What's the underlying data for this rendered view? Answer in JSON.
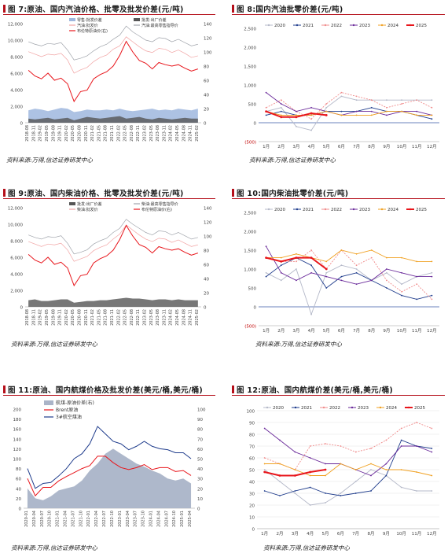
{
  "panels": [
    {
      "key": "p7",
      "title_prefix": "图 7:",
      "title": "原油、国内汽油价格、批零及批发价差(元/吨)",
      "source": "资料来源:万得,信达证券研发中心"
    },
    {
      "key": "p8",
      "title_prefix": "图 8:",
      "title": "国内汽油批零价差(元/吨)",
      "source": "资料来源:万得,信达证券研发中心"
    },
    {
      "key": "p9",
      "title_prefix": "图 9:",
      "title": "原油、国内柴油价格、批零及批发价差(元/吨)",
      "source": "资料来源:万得,信达证券研发中心"
    },
    {
      "key": "p10",
      "title_prefix": "图 10:",
      "title": "国内柴油批零价差(元/吨)",
      "source": "资料来源:万得,信达证券研发中心"
    },
    {
      "key": "p11",
      "title_prefix": "图 11:",
      "title": "原油、国内航煤价格及批发价差(美元/桶,美元/桶)",
      "source": "资料来源:万得,信达证券研发中心"
    },
    {
      "key": "p12",
      "title_prefix": "图 12:",
      "title": "原油、国内航煤价差(美元/桶,美元/桶)",
      "source": "资料来源:万得,信达证券研发中心"
    }
  ],
  "colors": {
    "accent": "#b50f1a",
    "crude": "#e8151b",
    "area_light": "#9fb7de",
    "area_dark": "#555555",
    "pink": "#f1a3a3",
    "grey_line": "#a0a4ab",
    "y2020": "#b4b8c8",
    "y2021": "#1f3c8c",
    "y2022": "#f08c8c",
    "y2023": "#6a2a9a",
    "y2024": "#f0a020",
    "y2025": "#e8151b"
  },
  "chart_data": [
    {
      "key": "p7",
      "type": "line",
      "legend": [
        "零售-批发价差",
        "批发:出厂价差",
        "汽油:批发价",
        "汽油:最高零售指导价",
        "布伦特原油价(右)"
      ],
      "x_ticks": [
        "2018-08",
        "2018-11",
        "2019-02",
        "2019-05",
        "2019-08",
        "2019-11",
        "2020-02",
        "2020-05",
        "2020-08",
        "2020-11",
        "2021-02",
        "2021-05",
        "2021-08",
        "2021-11",
        "2022-02",
        "2022-05",
        "2022-08",
        "2022-11",
        "2023-02",
        "2023-05",
        "2023-08",
        "2023-11",
        "2024-02",
        "2024-05",
        "2024-08",
        "2024-11",
        "2025-02"
      ],
      "ylim": [
        0,
        12000
      ],
      "y_ticks": [
        "0",
        "2,000",
        "4,000",
        "6,000",
        "8,000",
        "10,000",
        "12,000"
      ],
      "y2lim": [
        0,
        140
      ],
      "y2_ticks": [
        "0",
        "20",
        "40",
        "60",
        "80",
        "100",
        "120",
        "140"
      ],
      "series": [
        {
          "name": "零售-批发价差",
          "values": [
            1500,
            1700,
            1600,
            1400,
            1600,
            1800,
            1700,
            1300,
            1400,
            1600,
            1500,
            1500,
            1600,
            1500,
            1700,
            1500,
            1400,
            1500,
            1600,
            1700,
            1500,
            1600,
            1500,
            1700,
            1600,
            1500,
            1700
          ]
        },
        {
          "name": "批发:出厂价差",
          "values": [
            500,
            400,
            500,
            600,
            400,
            500,
            600,
            300,
            500,
            700,
            600,
            500,
            600,
            700,
            800,
            500,
            600,
            700,
            500,
            400,
            600,
            500,
            400,
            500,
            600,
            500,
            500
          ]
        },
        {
          "name": "汽油:批发价",
          "values": [
            8600,
            8300,
            8000,
            8300,
            8200,
            8400,
            7600,
            6000,
            6400,
            6700,
            7400,
            7900,
            8200,
            8900,
            9300,
            10400,
            9800,
            9200,
            8700,
            8500,
            9000,
            8900,
            8500,
            8800,
            8400,
            7900,
            8100
          ]
        },
        {
          "name": "汽油:最高零售指导价",
          "values": [
            9800,
            9500,
            9300,
            9600,
            9500,
            9700,
            8800,
            7600,
            7800,
            8100,
            8700,
            9200,
            9500,
            10100,
            10600,
            11700,
            11000,
            10500,
            10000,
            9800,
            10300,
            10200,
            9800,
            10100,
            9700,
            9300,
            9500
          ]
        },
        {
          "name": "布伦特原油价(右)",
          "values": [
            74,
            66,
            62,
            70,
            60,
            63,
            55,
            30,
            44,
            46,
            62,
            68,
            72,
            80,
            95,
            115,
            100,
            88,
            84,
            76,
            85,
            82,
            80,
            82,
            77,
            73,
            76
          ]
        }
      ]
    },
    {
      "key": "p8",
      "type": "line",
      "legend": [
        "2020",
        "2021",
        "2022",
        "2023",
        "2024",
        "2025"
      ],
      "x_ticks": [
        "1月",
        "2月",
        "3月",
        "4月",
        "5月",
        "6月",
        "7月",
        "8月",
        "9月",
        "10月",
        "11月",
        "12月"
      ],
      "ylim": [
        -500,
        2500
      ],
      "y_ticks": [
        "(500)",
        "0",
        "500",
        "1,000",
        "1,500",
        "2,000",
        "2,500"
      ],
      "series": [
        {
          "name": "2020",
          "values": [
            300,
            400,
            -100,
            -200,
            400,
            700,
            600,
            600,
            600,
            600,
            600,
            600
          ]
        },
        {
          "name": "2021",
          "values": [
            200,
            300,
            200,
            200,
            300,
            300,
            300,
            400,
            300,
            300,
            200,
            100
          ]
        },
        {
          "name": "2022",
          "values": [
            400,
            600,
            300,
            100,
            500,
            800,
            700,
            600,
            400,
            500,
            600,
            400
          ]
        },
        {
          "name": "2023",
          "values": [
            800,
            500,
            300,
            400,
            300,
            200,
            300,
            300,
            200,
            300,
            300,
            200
          ]
        },
        {
          "name": "2024",
          "values": [
            300,
            200,
            200,
            200,
            300,
            200,
            200,
            200,
            300,
            300,
            200,
            200
          ]
        },
        {
          "name": "2025",
          "values": [
            300,
            150,
            150,
            250,
            200
          ]
        }
      ]
    },
    {
      "key": "p9",
      "type": "line",
      "legend": [
        "批发:出厂价差",
        "柴油:最高零售指导价",
        "柴油:批发价",
        "布伦特原油价(右)"
      ],
      "x_ticks": [
        "2018-08",
        "2018-11",
        "2019-02",
        "2019-05",
        "2019-08",
        "2019-11",
        "2020-02",
        "2020-05",
        "2020-08",
        "2020-11",
        "2021-02",
        "2021-05",
        "2021-08",
        "2021-11",
        "2022-02",
        "2022-05",
        "2022-08",
        "2022-11",
        "2023-02",
        "2023-05",
        "2023-08",
        "2023-11",
        "2024-02",
        "2024-05",
        "2024-08",
        "2024-11",
        "2025-02"
      ],
      "ylim": [
        0,
        12000
      ],
      "y_ticks": [
        "0",
        "2,000",
        "4,000",
        "6,000",
        "8,000",
        "10,000",
        "12,000"
      ],
      "y2lim": [
        0,
        140
      ],
      "y2_ticks": [
        "0",
        "20",
        "40",
        "60",
        "80",
        "100",
        "120",
        "140"
      ],
      "series": [
        {
          "name": "批发:出厂价差",
          "values": [
            800,
            900,
            700,
            700,
            800,
            900,
            900,
            500,
            600,
            700,
            700,
            800,
            800,
            900,
            1000,
            1100,
            1000,
            1000,
            900,
            800,
            900,
            900,
            800,
            900,
            800,
            800,
            800
          ]
        },
        {
          "name": "柴油:最高零售指导价",
          "values": [
            8700,
            8400,
            8200,
            8500,
            8400,
            8600,
            7700,
            6400,
            6600,
            6900,
            7600,
            8000,
            8300,
            9000,
            9500,
            10600,
            10000,
            9500,
            9000,
            8700,
            9200,
            9100,
            8700,
            9000,
            8600,
            8200,
            8400
          ]
        },
        {
          "name": "柴油:批发价",
          "values": [
            7900,
            7600,
            7300,
            7600,
            7500,
            7700,
            6900,
            5500,
            5800,
            6100,
            6800,
            7200,
            7500,
            8200,
            8800,
            9900,
            9300,
            8700,
            8200,
            7900,
            8300,
            8200,
            7800,
            8100,
            7700,
            7300,
            7500
          ]
        },
        {
          "name": "布伦特原油价(右)",
          "values": [
            74,
            66,
            62,
            70,
            60,
            63,
            55,
            30,
            44,
            46,
            62,
            68,
            72,
            80,
            95,
            115,
            100,
            88,
            84,
            76,
            85,
            82,
            80,
            82,
            77,
            73,
            76
          ]
        }
      ]
    },
    {
      "key": "p10",
      "type": "line",
      "legend": [
        "2020",
        "2021",
        "2022",
        "2023",
        "2024",
        "2025"
      ],
      "x_ticks": [
        "1月",
        "2月",
        "3月",
        "4月",
        "5月",
        "6月",
        "7月",
        "8月",
        "9月",
        "10月",
        "11月",
        "12月"
      ],
      "ylim": [
        -500,
        2500
      ],
      "y_ticks": [
        "(500)",
        "0",
        "500",
        "1,000",
        "1,500",
        "2,000",
        "2,500"
      ],
      "series": [
        {
          "name": "2020",
          "values": [
            900,
            700,
            1000,
            -200,
            900,
            1100,
            1000,
            700,
            900,
            600,
            800,
            900
          ]
        },
        {
          "name": "2021",
          "values": [
            800,
            1100,
            1300,
            1100,
            500,
            800,
            900,
            700,
            500,
            300,
            200,
            300
          ]
        },
        {
          "name": "2022",
          "values": [
            1300,
            1200,
            1200,
            1500,
            1000,
            1500,
            1100,
            1300,
            700,
            400,
            600,
            200
          ]
        },
        {
          "name": "2023",
          "values": [
            1600,
            900,
            700,
            900,
            800,
            700,
            600,
            700,
            1000,
            900,
            800,
            800
          ]
        },
        {
          "name": "2024",
          "values": [
            1300,
            1300,
            1400,
            1300,
            1200,
            1500,
            1400,
            1500,
            1300,
            1300,
            1200,
            1200
          ]
        },
        {
          "name": "2025",
          "values": [
            1300,
            1200,
            1300,
            1300,
            1000
          ]
        }
      ]
    },
    {
      "key": "p11",
      "type": "area",
      "legend": [
        "航煤-原油价差(右)",
        "Brent原油",
        "3#航空煤油"
      ],
      "x_ticks": [
        "2020-01",
        "2020-04",
        "2020-07",
        "2020-10",
        "2021-01",
        "2021-04",
        "2021-07",
        "2021-10",
        "2022-01",
        "2022-04",
        "2022-07",
        "2022-10",
        "2023-01",
        "2023-04",
        "2023-07",
        "2023-10",
        "2024-01",
        "2024-04",
        "2024-07",
        "2024-10",
        "2025-01",
        "2025-04"
      ],
      "ylim": [
        0,
        200
      ],
      "y_ticks": [
        "0",
        "20",
        "40",
        "60",
        "80",
        "100",
        "120",
        "140",
        "160",
        "180",
        "200"
      ],
      "y2lim": [
        0,
        100
      ],
      "y2_ticks": [
        "0",
        "10",
        "20",
        "30",
        "40",
        "50",
        "60",
        "70",
        "80",
        "90",
        "100"
      ],
      "series": [
        {
          "name": "航煤-原油价差(右)",
          "values": [
            20,
            10,
            8,
            12,
            18,
            20,
            22,
            28,
            38,
            45,
            55,
            60,
            55,
            50,
            45,
            42,
            38,
            35,
            30,
            28,
            30,
            25
          ]
        },
        {
          "name": "Brent原油",
          "values": [
            60,
            25,
            42,
            42,
            55,
            64,
            72,
            80,
            86,
            105,
            105,
            92,
            82,
            78,
            82,
            88,
            78,
            82,
            82,
            74,
            76,
            66
          ]
        },
        {
          "name": "3#航空煤油",
          "values": [
            80,
            40,
            50,
            52,
            65,
            80,
            100,
            110,
            130,
            165,
            150,
            135,
            130,
            118,
            125,
            135,
            125,
            120,
            118,
            112,
            112,
            100
          ]
        }
      ]
    },
    {
      "key": "p12",
      "type": "line",
      "legend": [
        "2020",
        "2021",
        "2022",
        "2023",
        "2024",
        "2025"
      ],
      "x_ticks": [
        "1月",
        "2月",
        "3月",
        "4月",
        "5月",
        "6月",
        "7月",
        "8月",
        "9月",
        "10月",
        "11月",
        "12月"
      ],
      "ylim": [
        0,
        100
      ],
      "y_ticks": [
        "0",
        "10",
        "20",
        "30",
        "40",
        "50",
        "60",
        "70",
        "80",
        "90",
        "100"
      ],
      "series": [
        {
          "name": "2020",
          "values": [
            50,
            40,
            30,
            20,
            22,
            30,
            40,
            50,
            45,
            35,
            32,
            32
          ]
        },
        {
          "name": "2021",
          "values": [
            32,
            28,
            32,
            35,
            30,
            28,
            30,
            32,
            45,
            75,
            70,
            68
          ]
        },
        {
          "name": "2022",
          "values": [
            60,
            55,
            50,
            70,
            72,
            70,
            65,
            68,
            75,
            85,
            90,
            85
          ]
        },
        {
          "name": "2023",
          "values": [
            85,
            75,
            65,
            60,
            55,
            55,
            50,
            45,
            55,
            70,
            70,
            65
          ]
        },
        {
          "name": "2024",
          "values": [
            55,
            55,
            50,
            45,
            45,
            55,
            50,
            55,
            50,
            50,
            48,
            45
          ]
        },
        {
          "name": "2025",
          "values": [
            48,
            45,
            45,
            48,
            50
          ]
        }
      ]
    }
  ]
}
